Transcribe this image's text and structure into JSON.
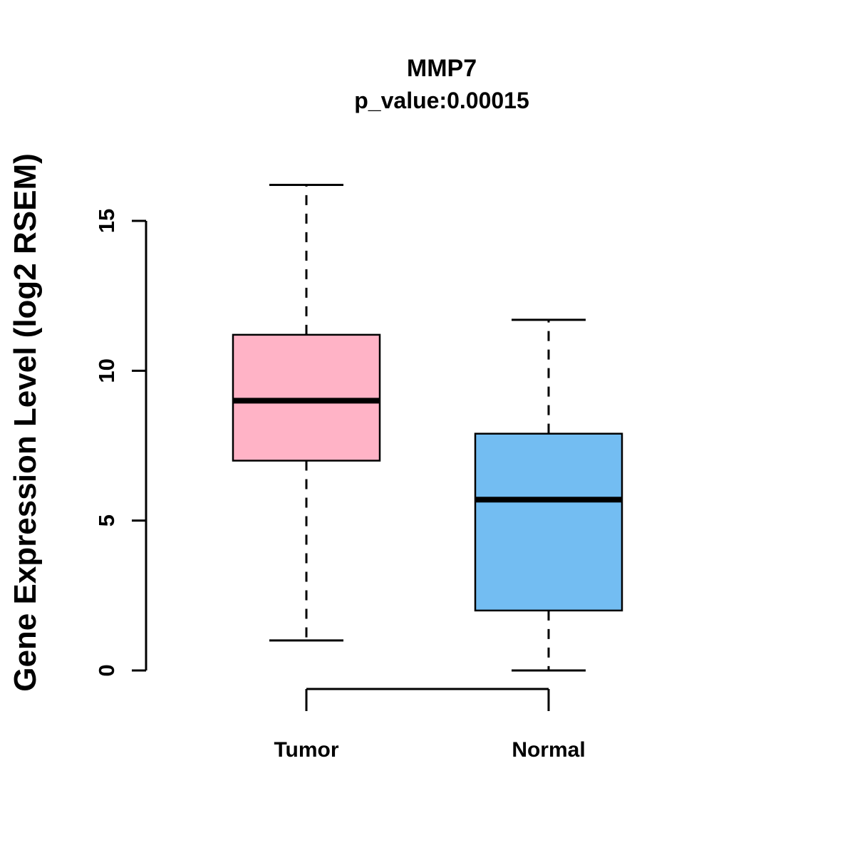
{
  "title": "MMP7",
  "subtitle": "p_value:0.00015",
  "ylabel": "Gene Expression Level (log2 RSEM)",
  "background_color": "#ffffff",
  "chart_data": {
    "type": "boxplot",
    "title": "MMP7",
    "subtitle": "p_value:0.00015",
    "xlabel": "",
    "ylabel": "Gene Expression Level (log2 RSEM)",
    "categories": [
      "Tumor",
      "Normal"
    ],
    "series": [
      {
        "name": "Tumor",
        "min": 1.0,
        "q1": 7.0,
        "median": 9.0,
        "q3": 11.2,
        "max": 16.2,
        "color": "#FFB3C6"
      },
      {
        "name": "Normal",
        "min": 0.0,
        "q1": 2.0,
        "median": 5.7,
        "q3": 7.9,
        "max": 11.7,
        "color": "#73BDF2"
      }
    ],
    "yticks": [
      0,
      5,
      10,
      15
    ],
    "ylim": [
      0,
      15
    ],
    "grid": false,
    "legend": "none",
    "box_border_color": "#000000",
    "median_color": "#000000",
    "whisker_style": "dashed"
  }
}
